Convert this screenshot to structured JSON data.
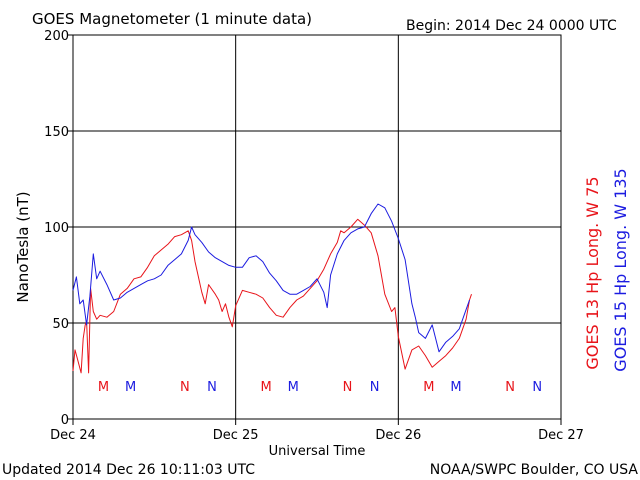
{
  "chart_data": {
    "type": "line",
    "title": "GOES Magnetometer (1 minute data)",
    "begin_label": "Begin:  2014 Dec 24 0000 UTC",
    "xlabel": "Universal Time",
    "ylabel": "NanoTesla (nT)",
    "footer_left": "Updated 2014 Dec 26 10:11:03 UTC",
    "footer_right": "NOAA/SWPC Boulder, CO USA",
    "xlim": [
      0,
      72
    ],
    "ylim": [
      0,
      200
    ],
    "x_unit": "hours since 2014 Dec 24 0000 UTC",
    "x_ticks": [
      {
        "value": 0,
        "label": "Dec 24"
      },
      {
        "value": 24,
        "label": "Dec 25"
      },
      {
        "value": 48,
        "label": "Dec 26"
      },
      {
        "value": 72,
        "label": "Dec 27"
      }
    ],
    "y_ticks": [
      0,
      50,
      100,
      150,
      200
    ],
    "grid": true,
    "series": [
      {
        "name": "GOES 13 Hp  Long. W 75",
        "color": "#e8141a",
        "points": [
          [
            0,
            25
          ],
          [
            0.3,
            36
          ],
          [
            0.6,
            32
          ],
          [
            0.9,
            28
          ],
          [
            1.2,
            24
          ],
          [
            1.5,
            42
          ],
          [
            1.8,
            49
          ],
          [
            2,
            51
          ],
          [
            2.3,
            24
          ],
          [
            2.6,
            68
          ],
          [
            3,
            56
          ],
          [
            3.5,
            52
          ],
          [
            4,
            54
          ],
          [
            5,
            53
          ],
          [
            6,
            56
          ],
          [
            7,
            65
          ],
          [
            8,
            68
          ],
          [
            9,
            73
          ],
          [
            10,
            74
          ],
          [
            11,
            79
          ],
          [
            12,
            85
          ],
          [
            13,
            88
          ],
          [
            14,
            91
          ],
          [
            14.5,
            93
          ],
          [
            15,
            95
          ],
          [
            16,
            96
          ],
          [
            17,
            98
          ],
          [
            17.5,
            93
          ],
          [
            18,
            82
          ],
          [
            18.5,
            74
          ],
          [
            19,
            66
          ],
          [
            19.5,
            60
          ],
          [
            20,
            70
          ],
          [
            21,
            65
          ],
          [
            21.5,
            62
          ],
          [
            22,
            56
          ],
          [
            22.5,
            60
          ],
          [
            23,
            53
          ],
          [
            23.5,
            48
          ],
          [
            24,
            59
          ],
          [
            25,
            67
          ],
          [
            26,
            66
          ],
          [
            27,
            65
          ],
          [
            28,
            63
          ],
          [
            29,
            58
          ],
          [
            30,
            54
          ],
          [
            31,
            53
          ],
          [
            32,
            58
          ],
          [
            33,
            62
          ],
          [
            34,
            64
          ],
          [
            35,
            68
          ],
          [
            36,
            72
          ],
          [
            37,
            78
          ],
          [
            38,
            86
          ],
          [
            39,
            92
          ],
          [
            39.5,
            98
          ],
          [
            40,
            97
          ],
          [
            41,
            100
          ],
          [
            42,
            104
          ],
          [
            43,
            101
          ],
          [
            44,
            97
          ],
          [
            45,
            85
          ],
          [
            46,
            65
          ],
          [
            47,
            56
          ],
          [
            47.5,
            58
          ],
          [
            48,
            43
          ],
          [
            49,
            26
          ],
          [
            50,
            36
          ],
          [
            51,
            38
          ],
          [
            52,
            33
          ],
          [
            53,
            27
          ],
          [
            54,
            30
          ],
          [
            55,
            33
          ],
          [
            56,
            37
          ],
          [
            57,
            42
          ],
          [
            58,
            52
          ],
          [
            58.5,
            62
          ],
          [
            58.8,
            65
          ]
        ]
      },
      {
        "name": "GOES 15 Hp  Long. W 135",
        "color": "#1c1ce0",
        "points": [
          [
            0,
            67
          ],
          [
            0.5,
            74
          ],
          [
            1,
            60
          ],
          [
            1.5,
            62
          ],
          [
            2,
            49
          ],
          [
            2.5,
            64
          ],
          [
            3,
            86
          ],
          [
            3.5,
            73
          ],
          [
            4,
            77
          ],
          [
            5,
            70
          ],
          [
            6,
            62
          ],
          [
            7,
            63
          ],
          [
            8,
            66
          ],
          [
            9,
            68
          ],
          [
            10,
            70
          ],
          [
            11,
            72
          ],
          [
            12,
            73
          ],
          [
            13,
            75
          ],
          [
            14,
            80
          ],
          [
            15,
            83
          ],
          [
            16,
            86
          ],
          [
            17,
            93
          ],
          [
            17.5,
            100
          ],
          [
            18,
            96
          ],
          [
            19,
            92
          ],
          [
            20,
            87
          ],
          [
            21,
            84
          ],
          [
            22,
            82
          ],
          [
            23,
            80
          ],
          [
            24,
            79
          ],
          [
            25,
            79
          ],
          [
            26,
            84
          ],
          [
            27,
            85
          ],
          [
            28,
            82
          ],
          [
            29,
            76
          ],
          [
            30,
            72
          ],
          [
            31,
            67
          ],
          [
            32,
            65
          ],
          [
            33,
            65
          ],
          [
            34,
            67
          ],
          [
            35,
            69
          ],
          [
            36,
            73
          ],
          [
            37,
            66
          ],
          [
            37.5,
            58
          ],
          [
            38,
            75
          ],
          [
            39,
            86
          ],
          [
            40,
            93
          ],
          [
            41,
            97
          ],
          [
            42,
            99
          ],
          [
            43,
            100
          ],
          [
            44,
            107
          ],
          [
            45,
            112
          ],
          [
            46,
            110
          ],
          [
            47,
            103
          ],
          [
            48,
            94
          ],
          [
            49,
            83
          ],
          [
            50,
            60
          ],
          [
            50.5,
            53
          ],
          [
            51,
            45
          ],
          [
            52,
            42
          ],
          [
            53,
            49
          ],
          [
            54,
            35
          ],
          [
            55,
            40
          ],
          [
            56,
            43
          ],
          [
            57,
            47
          ],
          [
            58,
            57
          ],
          [
            58.5,
            62
          ]
        ]
      }
    ],
    "mn_markers": [
      {
        "letter": "M",
        "hour": 4.5,
        "color": "#e8141a"
      },
      {
        "letter": "M",
        "hour": 8.5,
        "color": "#1c1ce0"
      },
      {
        "letter": "N",
        "hour": 16.5,
        "color": "#e8141a"
      },
      {
        "letter": "N",
        "hour": 20.5,
        "color": "#1c1ce0"
      },
      {
        "letter": "M",
        "hour": 28.5,
        "color": "#e8141a"
      },
      {
        "letter": "M",
        "hour": 32.5,
        "color": "#1c1ce0"
      },
      {
        "letter": "N",
        "hour": 40.5,
        "color": "#e8141a"
      },
      {
        "letter": "N",
        "hour": 44.5,
        "color": "#1c1ce0"
      },
      {
        "letter": "M",
        "hour": 52.5,
        "color": "#e8141a"
      },
      {
        "letter": "M",
        "hour": 56.5,
        "color": "#1c1ce0"
      },
      {
        "letter": "N",
        "hour": 64.5,
        "color": "#e8141a"
      },
      {
        "letter": "N",
        "hour": 68.5,
        "color": "#1c1ce0"
      }
    ]
  }
}
